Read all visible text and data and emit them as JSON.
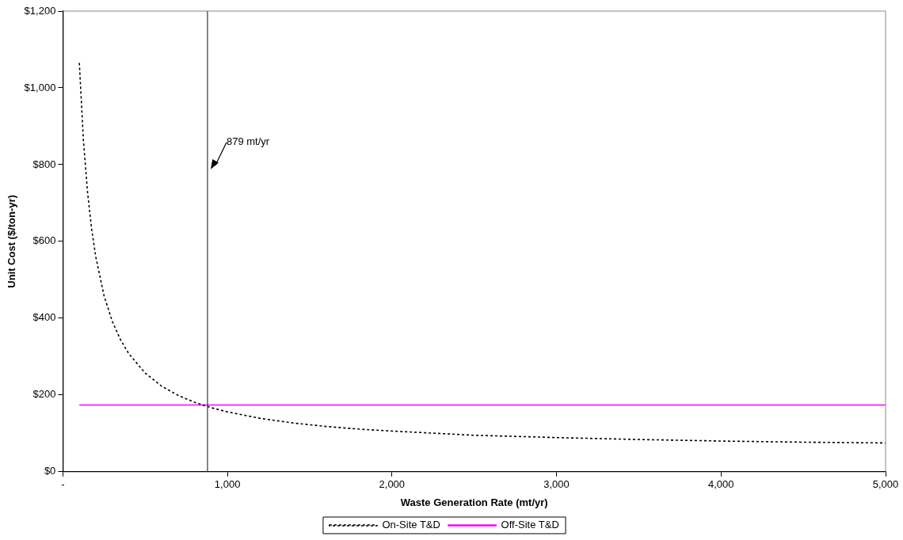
{
  "chart_data": {
    "type": "line",
    "xlabel": "Waste Generation Rate (mt/yr)",
    "ylabel": "Unit Cost ($/ton-yr)",
    "xlim": [
      0,
      5000
    ],
    "xticks": [
      {
        "value": 0,
        "label": "-"
      },
      {
        "value": 1000,
        "label": "1,000"
      },
      {
        "value": 2000,
        "label": "2,000"
      },
      {
        "value": 3000,
        "label": "3,000"
      },
      {
        "value": 4000,
        "label": "4,000"
      },
      {
        "value": 5000,
        "label": "5,000"
      }
    ],
    "ylim": [
      0,
      1200
    ],
    "yticks": [
      {
        "value": 0,
        "label": "$0"
      },
      {
        "value": 200,
        "label": "$200"
      },
      {
        "value": 400,
        "label": "$400"
      },
      {
        "value": 600,
        "label": "$600"
      },
      {
        "value": 800,
        "label": "$800"
      },
      {
        "value": 1000,
        "label": "$1,000"
      },
      {
        "value": 1200,
        "label": "$1,200"
      }
    ],
    "marker": "none",
    "legend": "bottom",
    "series": [
      {
        "name": "On-Site T&D",
        "color": "#000000",
        "line_style": "dotted",
        "x": [
          100,
          125,
          150,
          175,
          200,
          250,
          300,
          350,
          400,
          500,
          600,
          700,
          800,
          900,
          1000,
          1200,
          1400,
          1600,
          1800,
          2000,
          2500,
          3000,
          3500,
          4000,
          4500,
          5000
        ],
        "values": [
          1065,
          863,
          728,
          632,
          560,
          459,
          392,
          344,
          308,
          257,
          223,
          199,
          181,
          167,
          156,
          139,
          127,
          118,
          111,
          106,
          95,
          89,
          84,
          80,
          77,
          75
        ]
      },
      {
        "name": "Off-Site T&D",
        "color": "#ff00ff",
        "line_style": "solid",
        "x": [
          100,
          5000
        ],
        "values": [
          174,
          174
        ]
      }
    ],
    "ref_lines": [
      {
        "axis": "x",
        "value": 879,
        "label": "879 mt/yr",
        "color": "#333333"
      }
    ]
  }
}
